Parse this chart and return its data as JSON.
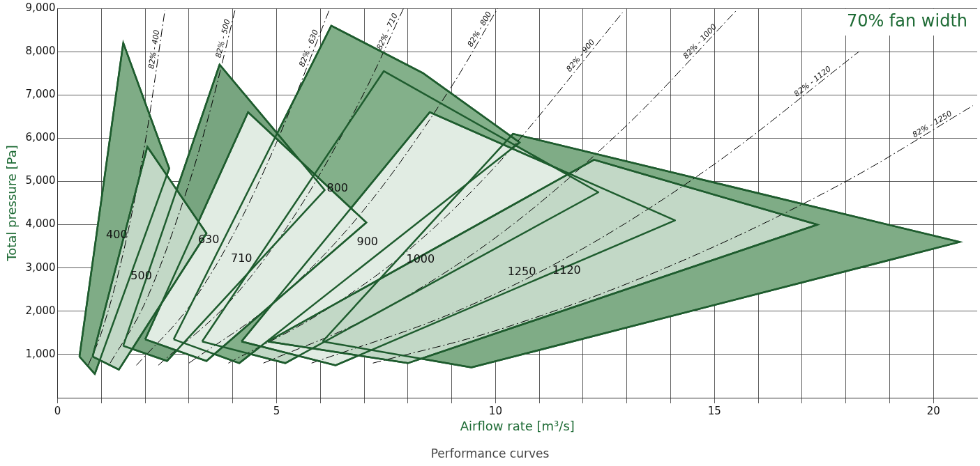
{
  "chart_data": {
    "type": "area",
    "title": "Performance curves",
    "xlabel": "Airflow rate [m³/s]",
    "ylabel": "Total pressure [Pa]",
    "annotations": [
      "70% fan width"
    ],
    "xlim": [
      0,
      21
    ],
    "xticks": [
      0,
      {
        "value": 1,
        "label": null
      },
      {
        "value": 2,
        "label": null
      },
      {
        "value": 3,
        "label": null
      },
      {
        "value": 4,
        "label": null
      },
      5,
      {
        "value": 6,
        "label": null
      },
      {
        "value": 7,
        "label": null
      },
      {
        "value": 8,
        "label": null
      },
      {
        "value": 9,
        "label": null
      },
      10,
      {
        "value": 11,
        "label": null
      },
      {
        "value": 12,
        "label": null
      },
      {
        "value": 13,
        "label": null
      },
      {
        "value": 14,
        "label": null
      },
      15,
      {
        "value": 16,
        "label": null
      },
      {
        "value": 17,
        "label": null
      },
      {
        "value": 18,
        "label": null
      },
      {
        "value": 19,
        "label": null
      },
      20
    ],
    "ylim": [
      0,
      9000
    ],
    "yticks": [
      {
        "value": 1000,
        "label": "1,000"
      },
      {
        "value": 2000,
        "label": "2,000"
      },
      {
        "value": 3000,
        "label": "3,000"
      },
      {
        "value": 4000,
        "label": "4,000"
      },
      {
        "value": 5000,
        "label": "5,000"
      },
      {
        "value": 6000,
        "label": "6,000"
      },
      {
        "value": 7000,
        "label": "7,000"
      },
      {
        "value": 8000,
        "label": "8,000"
      },
      {
        "value": 9000,
        "label": "9,000"
      }
    ],
    "grid": true,
    "legend": false,
    "marker": "none",
    "series": [
      {
        "name": "400",
        "color": "#7fac86",
        "x": [
          0.5,
          1.5,
          2.55,
          0.85,
          0.5
        ],
        "values": [
          950,
          8200,
          5300,
          550,
          950
        ]
      },
      {
        "name": "500",
        "color": "#c2d8c6",
        "x": [
          0.8,
          2.05,
          3.4,
          1.4,
          0.8
        ],
        "values": [
          950,
          5800,
          3800,
          650,
          950
        ]
      },
      {
        "name": "630",
        "color": "#78a580",
        "x": [
          1.5,
          3.7,
          6.1,
          2.5,
          1.5
        ],
        "values": [
          1200,
          7700,
          4800,
          850,
          1200
        ]
      },
      {
        "name": "710",
        "color": "#e1ece3",
        "x": [
          2,
          4.35,
          7.05,
          3.4,
          2
        ],
        "values": [
          1350,
          6600,
          4050,
          850,
          1350
        ]
      },
      {
        "name": "800",
        "color": "#83b08a",
        "x": [
          2.65,
          6.25,
          8.35,
          10.55,
          4.15,
          2.65
        ],
        "values": [
          1350,
          8600,
          7500,
          5900,
          800,
          1350
        ]
      },
      {
        "name": "900",
        "color": "#c2d8c6",
        "x": [
          3.3,
          7.45,
          12.35,
          5.2,
          3.3
        ],
        "values": [
          1300,
          7550,
          4750,
          800,
          1300
        ]
      },
      {
        "name": "1000",
        "color": "#e1ece3",
        "x": [
          4.2,
          8.5,
          14.1,
          6.35,
          4.2
        ],
        "values": [
          1300,
          6600,
          4100,
          750,
          1300
        ]
      },
      {
        "name": "1120",
        "color": "#7fac86",
        "x": [
          6.05,
          10.4,
          20.6,
          9.45,
          6.05
        ],
        "values": [
          1300,
          6100,
          3600,
          700,
          1300
        ]
      },
      {
        "name": "1250",
        "color": "#c2d8c6",
        "x": [
          4.8,
          12.25,
          17.35,
          8,
          4.8
        ],
        "values": [
          1300,
          5500,
          4000,
          800,
          1300
        ]
      },
      {
        "name": "82% - 400",
        "type": "line",
        "line_style": "dashed",
        "color": "#000000",
        "x": [
          0.7,
          1,
          1.5,
          2,
          2.45
        ],
        "values": [
          750,
          1500,
          3350,
          5900,
          8950
        ]
      },
      {
        "name": "82% - 500",
        "type": "line",
        "line_style": "dashed",
        "color": "#000000",
        "x": [
          1.2,
          2,
          3,
          3.5,
          4.05
        ],
        "values": [
          800,
          2200,
          4950,
          6700,
          8950
        ]
      },
      {
        "name": "82% - 630",
        "type": "line",
        "line_style": "dashed",
        "color": "#000000",
        "x": [
          1.8,
          3,
          4,
          5,
          6.2
        ],
        "values": [
          750,
          2100,
          3750,
          5900,
          8950
        ]
      },
      {
        "name": "82% - 710",
        "type": "line",
        "line_style": "dashed",
        "color": "#000000",
        "x": [
          2.3,
          4,
          5.5,
          7,
          7.9
        ],
        "values": [
          750,
          2300,
          4350,
          7050,
          9000
        ]
      },
      {
        "name": "82% - 800",
        "type": "line",
        "line_style": "dashed",
        "color": "#000000",
        "x": [
          3,
          5,
          7,
          9,
          10.05
        ],
        "values": [
          800,
          2250,
          4350,
          7200,
          9000
        ]
      },
      {
        "name": "82% - 900",
        "type": "line",
        "line_style": "dashed",
        "color": "#000000",
        "x": [
          3.9,
          6,
          8,
          10,
          12.9
        ],
        "values": [
          800,
          1950,
          3400,
          5350,
          8900
        ]
      },
      {
        "name": "82% - 1000",
        "type": "line",
        "line_style": "dashed",
        "color": "#000000",
        "x": [
          4.7,
          7,
          10,
          13,
          15.5
        ],
        "values": [
          800,
          1800,
          3700,
          6300,
          8950
        ]
      },
      {
        "name": "82% - 1120",
        "type": "line",
        "line_style": "dashed",
        "color": "#000000",
        "x": [
          5.8,
          9,
          12,
          15,
          18.3
        ],
        "values": [
          800,
          1950,
          3450,
          5400,
          8000
        ]
      },
      {
        "name": "82% - 1250",
        "type": "line",
        "line_style": "dashed",
        "color": "#000000",
        "x": [
          7.2,
          10,
          14,
          18,
          20.9
        ],
        "values": [
          800,
          1550,
          3050,
          5000,
          6750
        ]
      }
    ]
  }
}
